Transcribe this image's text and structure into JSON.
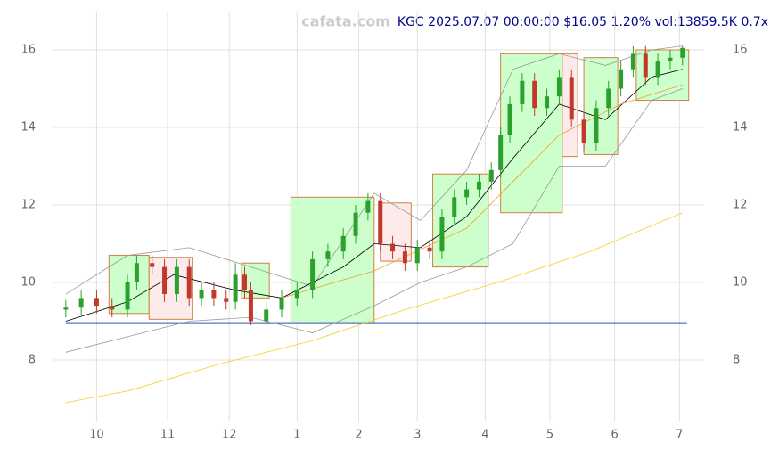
{
  "chart_data": {
    "type": "candlestick",
    "title": "KGC 2025.07.07 00:00:00 $16.05 1.20% vol:13859.5K 0.7x",
    "watermark": "cafata.com",
    "xlim": [
      -14,
      197
    ],
    "ylim": [
      6.4,
      17.0
    ],
    "xticks": [
      {
        "value": 0,
        "label": "10"
      },
      {
        "value": 23,
        "label": "11"
      },
      {
        "value": 43,
        "label": "12"
      },
      {
        "value": 65,
        "label": "1"
      },
      {
        "value": 85,
        "label": "2"
      },
      {
        "value": 104,
        "label": "3"
      },
      {
        "value": 126,
        "label": "4"
      },
      {
        "value": 147,
        "label": "5"
      },
      {
        "value": 168,
        "label": "6"
      },
      {
        "value": 189,
        "label": "7"
      }
    ],
    "yticks": [
      8,
      10,
      12,
      14,
      16
    ],
    "grid": true,
    "up_color": "#2ca02c",
    "down_color": "#c0392b",
    "x": [
      -10,
      -5,
      0,
      5,
      10,
      13,
      18,
      22,
      26,
      30,
      34,
      38,
      42,
      45,
      48,
      50,
      55,
      60,
      65,
      70,
      75,
      80,
      84,
      88,
      92,
      96,
      100,
      104,
      108,
      112,
      116,
      120,
      124,
      128,
      131,
      134,
      138,
      142,
      146,
      150,
      154,
      158,
      162,
      166,
      170,
      174,
      178,
      182,
      186,
      190
    ],
    "open": [
      9.3,
      9.35,
      9.6,
      9.4,
      9.3,
      10.0,
      10.5,
      10.4,
      9.7,
      10.4,
      9.6,
      9.8,
      9.6,
      9.5,
      10.2,
      9.8,
      9.0,
      9.3,
      9.6,
      9.8,
      10.6,
      10.8,
      11.2,
      11.8,
      12.1,
      11.0,
      10.8,
      10.5,
      10.9,
      10.8,
      11.7,
      12.2,
      12.4,
      12.6,
      12.9,
      13.8,
      14.6,
      15.2,
      14.5,
      14.8,
      15.3,
      14.2,
      13.6,
      14.5,
      15.0,
      15.5,
      15.9,
      15.3,
      15.7,
      15.8
    ],
    "high": [
      9.55,
      9.8,
      9.8,
      9.6,
      10.2,
      10.7,
      10.7,
      10.6,
      10.6,
      10.6,
      10.0,
      10.0,
      9.8,
      10.5,
      10.4,
      10.0,
      9.5,
      9.8,
      10.0,
      10.8,
      11.0,
      11.4,
      12.0,
      12.3,
      12.3,
      11.2,
      11.0,
      11.1,
      11.1,
      11.9,
      12.4,
      12.6,
      12.8,
      13.1,
      14.0,
      14.8,
      15.4,
      15.4,
      15.0,
      15.5,
      15.5,
      14.4,
      14.7,
      15.2,
      15.7,
      16.1,
      16.1,
      15.9,
      16.0,
      16.1
    ],
    "low": [
      9.1,
      9.15,
      9.2,
      9.1,
      9.1,
      9.8,
      10.2,
      9.5,
      9.5,
      9.4,
      9.4,
      9.4,
      9.3,
      9.3,
      9.6,
      8.9,
      8.9,
      9.1,
      9.4,
      9.6,
      10.4,
      10.6,
      11.0,
      11.6,
      10.8,
      10.6,
      10.3,
      10.3,
      10.6,
      10.6,
      11.5,
      12.0,
      12.2,
      12.4,
      12.7,
      13.6,
      14.4,
      14.3,
      14.3,
      14.6,
      14.0,
      13.4,
      13.4,
      14.3,
      14.8,
      15.3,
      15.1,
      15.1,
      15.5,
      15.6
    ],
    "close": [
      9.35,
      9.6,
      9.4,
      9.3,
      10.0,
      10.5,
      10.4,
      9.7,
      10.4,
      9.6,
      9.8,
      9.6,
      9.5,
      10.2,
      9.8,
      9.0,
      9.3,
      9.6,
      9.8,
      10.6,
      10.8,
      11.2,
      11.8,
      12.1,
      11.0,
      10.8,
      10.5,
      10.9,
      10.8,
      11.7,
      12.2,
      12.4,
      12.6,
      12.9,
      13.8,
      14.6,
      15.2,
      14.5,
      14.8,
      15.3,
      14.2,
      13.6,
      14.5,
      15.0,
      15.5,
      15.9,
      15.3,
      15.7,
      15.8,
      16.05
    ],
    "boxes": [
      {
        "x": [
          4,
          17
        ],
        "y": [
          9.2,
          10.7
        ],
        "color": "#ccffcc"
      },
      {
        "x": [
          17,
          31
        ],
        "y": [
          9.05,
          10.65
        ],
        "color": "#fdeaea"
      },
      {
        "x": [
          47,
          56
        ],
        "y": [
          9.6,
          10.5
        ],
        "color": "#ccffcc"
      },
      {
        "x": [
          63,
          90
        ],
        "y": [
          8.95,
          12.2
        ],
        "color": "#ccffcc"
      },
      {
        "x": [
          92,
          102
        ],
        "y": [
          10.55,
          12.05
        ],
        "color": "#fdeaea"
      },
      {
        "x": [
          109,
          127
        ],
        "y": [
          10.4,
          12.8
        ],
        "color": "#ccffcc"
      },
      {
        "x": [
          131,
          151
        ],
        "y": [
          11.8,
          15.9
        ],
        "color": "#ccffcc"
      },
      {
        "x": [
          151,
          156
        ],
        "y": [
          13.25,
          15.9
        ],
        "color": "#fdeaea"
      },
      {
        "x": [
          158,
          169
        ],
        "y": [
          13.3,
          15.8
        ],
        "color": "#ccffcc"
      },
      {
        "x": [
          175,
          192
        ],
        "y": [
          14.7,
          16.0
        ],
        "color": "#ccffcc"
      }
    ],
    "hlines": [
      8.95
    ],
    "lines": [
      {
        "color": "#999999",
        "x": [
          -10,
          10,
          30,
          50,
          70,
          90,
          105,
          120,
          135,
          150,
          165,
          180,
          190
        ],
        "y": [
          9.7,
          10.7,
          10.9,
          10.4,
          9.9,
          12.3,
          11.6,
          12.9,
          15.5,
          15.9,
          15.6,
          16.0,
          16.1
        ]
      },
      {
        "color": "#999999",
        "x": [
          -10,
          10,
          30,
          50,
          70,
          90,
          105,
          120,
          135,
          150,
          165,
          180,
          190
        ],
        "y": [
          8.2,
          8.6,
          9.0,
          9.1,
          8.7,
          9.4,
          10.0,
          10.4,
          11.0,
          13.0,
          13.0,
          14.7,
          15.0
        ]
      },
      {
        "color": "#000000",
        "x": [
          -10,
          10,
          25,
          45,
          60,
          80,
          90,
          105,
          120,
          135,
          150,
          165,
          180,
          190
        ],
        "y": [
          9.0,
          9.5,
          10.2,
          9.8,
          9.6,
          10.4,
          11.0,
          10.9,
          11.7,
          13.2,
          14.6,
          14.2,
          15.3,
          15.5
        ]
      },
      {
        "color": "#f0a030",
        "x": [
          60,
          90,
          120,
          150,
          170,
          190
        ],
        "y": [
          9.6,
          10.3,
          11.4,
          13.8,
          14.6,
          15.1
        ]
      },
      {
        "color": "#f5d020",
        "x": [
          -10,
          10,
          40,
          70,
          100,
          130,
          160,
          190
        ],
        "y": [
          6.9,
          7.2,
          7.9,
          8.5,
          9.3,
          10.0,
          10.8,
          11.8
        ]
      }
    ]
  }
}
